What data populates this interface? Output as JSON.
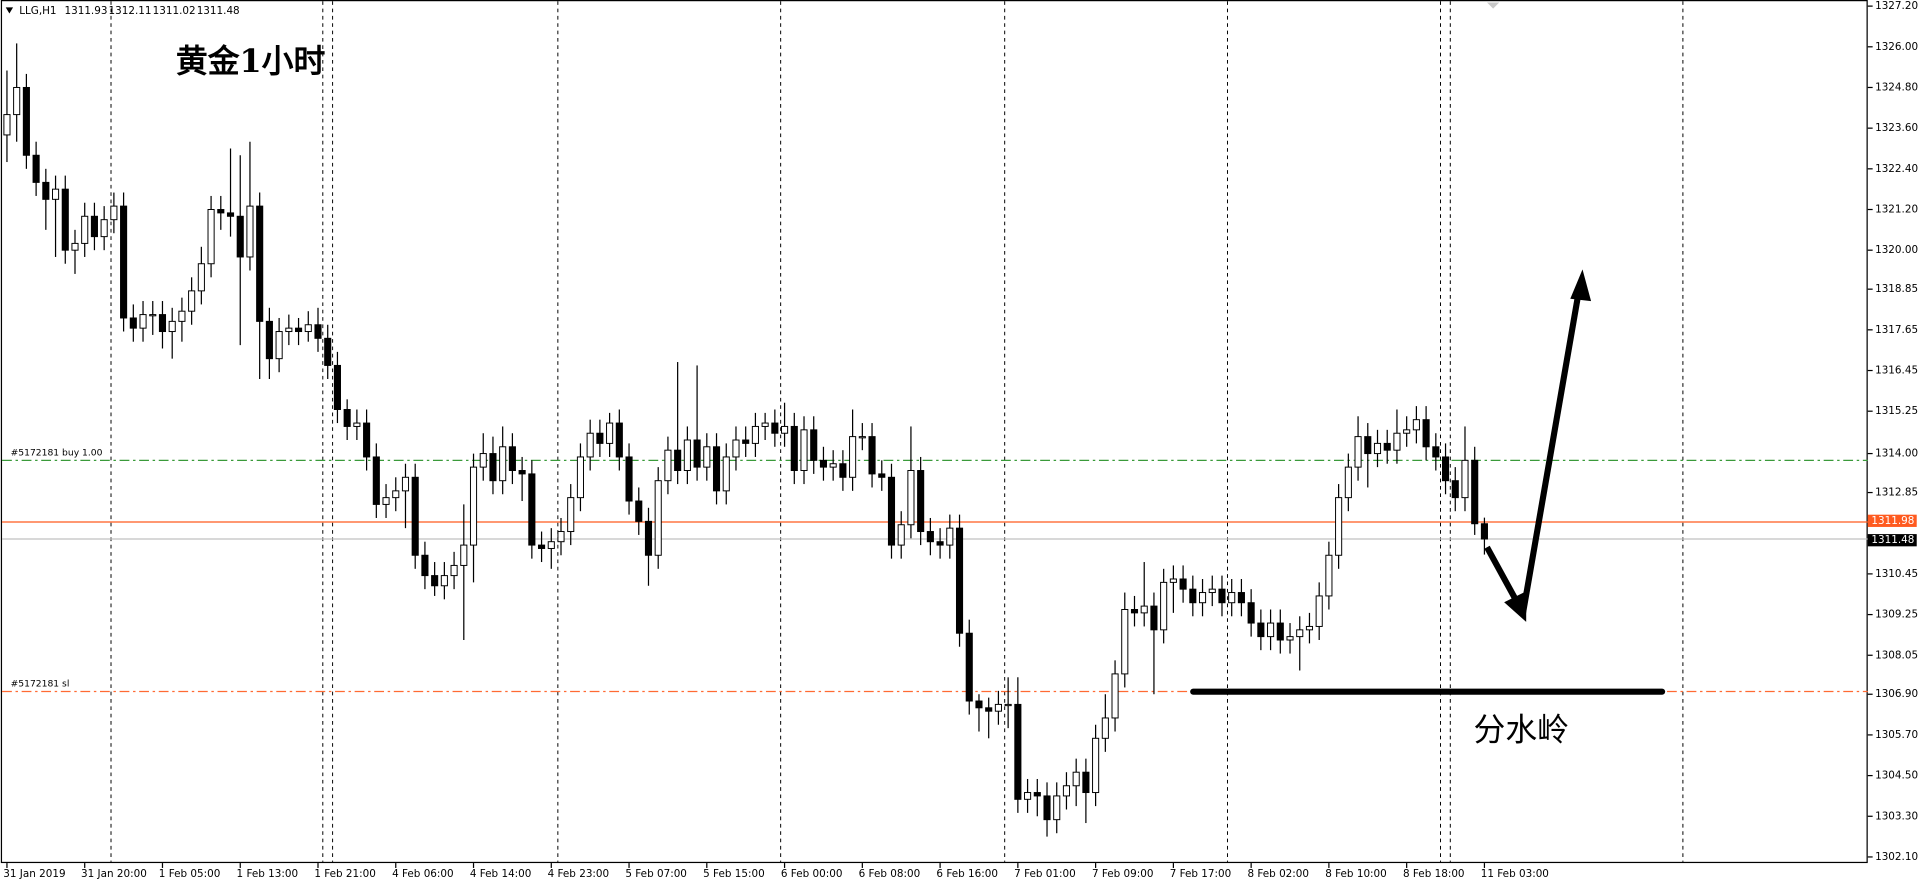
{
  "chart_data": {
    "type": "candlestick",
    "symbol": "LLG,H1",
    "title": "黄金1小时",
    "annotation": "分水岭",
    "ylim": [
      1302.1,
      1327.2
    ],
    "yticks": [
      {
        "value": 1327.2,
        "label": "1327.20"
      },
      {
        "value": 1326.0,
        "label": "1326.00"
      },
      {
        "value": 1324.8,
        "label": "1324.80"
      },
      {
        "value": 1323.6,
        "label": "1323.60"
      },
      {
        "value": 1322.4,
        "label": "1322.40"
      },
      {
        "value": 1321.2,
        "label": "1321.20"
      },
      {
        "value": 1320.0,
        "label": "1320.00"
      },
      {
        "value": 1318.85,
        "label": "1318.85"
      },
      {
        "value": 1317.65,
        "label": "1317.65"
      },
      {
        "value": 1316.45,
        "label": "1316.45"
      },
      {
        "value": 1315.25,
        "label": "1315.25"
      },
      {
        "value": 1314.0,
        "label": "1314.00"
      },
      {
        "value": 1312.85,
        "label": "1312.85"
      },
      {
        "value": 1310.45,
        "label": "1310.45"
      },
      {
        "value": 1309.25,
        "label": "1309.25"
      },
      {
        "value": 1308.05,
        "label": "1308.05"
      },
      {
        "value": 1306.9,
        "label": "1306.90"
      },
      {
        "value": 1305.7,
        "label": "1305.70"
      },
      {
        "value": 1304.5,
        "label": "1304.50"
      },
      {
        "value": 1303.3,
        "label": "1303.30"
      },
      {
        "value": 1302.1,
        "label": "1302.10"
      }
    ],
    "categories": [
      "31 Jan 2019",
      null,
      null,
      null,
      null,
      null,
      null,
      null,
      "31 Jan 20:00",
      null,
      null,
      null,
      null,
      null,
      null,
      null,
      "1 Feb 05:00",
      null,
      null,
      null,
      null,
      null,
      null,
      null,
      "1 Feb 13:00",
      null,
      null,
      null,
      null,
      null,
      null,
      null,
      "1 Feb 21:00",
      null,
      null,
      null,
      null,
      null,
      null,
      null,
      "4 Feb 06:00",
      null,
      null,
      null,
      null,
      null,
      null,
      null,
      "4 Feb 14:00",
      null,
      null,
      null,
      null,
      null,
      null,
      null,
      "4 Feb 23:00",
      null,
      null,
      null,
      null,
      null,
      null,
      null,
      "5 Feb 07:00",
      null,
      null,
      null,
      null,
      null,
      null,
      null,
      "5 Feb 15:00",
      null,
      null,
      null,
      null,
      null,
      null,
      null,
      "6 Feb 00:00",
      null,
      null,
      null,
      null,
      null,
      null,
      null,
      "6 Feb 08:00",
      null,
      null,
      null,
      null,
      null,
      null,
      null,
      "6 Feb 16:00",
      null,
      null,
      null,
      null,
      null,
      null,
      null,
      "7 Feb 01:00",
      null,
      null,
      null,
      null,
      null,
      null,
      null,
      "7 Feb 09:00",
      null,
      null,
      null,
      null,
      null,
      null,
      null,
      "7 Feb 17:00",
      null,
      null,
      null,
      null,
      null,
      null,
      null,
      "8 Feb 02:00",
      null,
      null,
      null,
      null,
      null,
      null,
      null,
      "8 Feb 10:00",
      null,
      null,
      null,
      null,
      null,
      null,
      null,
      "8 Feb 18:00",
      null,
      null,
      null,
      null,
      null,
      null,
      null,
      "11 Feb 03:00"
    ],
    "open": [
      1323.4,
      1324.0,
      1324.8,
      1322.8,
      1322.0,
      1321.5,
      1321.8,
      1320.0,
      1320.2,
      1321.0,
      1320.4,
      1320.9,
      1321.3,
      1318.0,
      1317.7,
      1318.1,
      1318.1,
      1317.6,
      1317.9,
      1318.2,
      1318.8,
      1319.6,
      1321.2,
      1321.1,
      1321.0,
      1319.8,
      1321.3,
      1317.9,
      1316.8,
      1317.6,
      1317.7,
      1317.6,
      1317.8,
      1317.4,
      1316.6,
      1315.3,
      1314.8,
      1314.9,
      1313.9,
      1312.5,
      1312.7,
      1312.9,
      1313.3,
      1311.0,
      1310.4,
      1310.1,
      1310.4,
      1310.7,
      1311.3,
      1313.6,
      1314.0,
      1313.2,
      1314.2,
      1313.5,
      1313.4,
      1311.3,
      1311.2,
      1311.4,
      1311.7,
      1312.7,
      1313.9,
      1314.6,
      1314.3,
      1314.9,
      1313.9,
      1312.6,
      1312.0,
      1311.0,
      1313.2,
      1314.1,
      1313.5,
      1314.4,
      1313.6,
      1314.2,
      1312.9,
      1313.9,
      1314.4,
      1314.3,
      1314.8,
      1314.9,
      1314.6,
      1314.8,
      1313.5,
      1314.7,
      1313.8,
      1313.6,
      1313.7,
      1313.3,
      1314.5,
      1314.5,
      1313.4,
      1313.3,
      1311.3,
      1311.9,
      1313.5,
      1311.7,
      1311.4,
      1311.3,
      1311.8,
      1308.7,
      1306.7,
      1306.5,
      1306.4,
      1306.6,
      1306.6,
      1303.8,
      1304.0,
      1303.9,
      1303.2,
      1303.9,
      1304.2,
      1304.6,
      1304.0,
      1305.6,
      1306.2,
      1307.5,
      1309.4,
      1309.3,
      1309.5,
      1308.8,
      1310.2,
      1310.3,
      1310.0,
      1309.6,
      1309.9,
      1310.0,
      1309.6,
      1309.9,
      1309.6,
      1309.0,
      1308.6,
      1309.0,
      1308.5,
      1308.6,
      1308.8,
      1308.9,
      1309.8,
      1311.0,
      1312.7,
      1313.6,
      1314.5,
      1314.0,
      1314.3,
      1314.1,
      1314.6,
      1314.7,
      1315.0,
      1314.2,
      1313.9,
      1313.2,
      1312.7,
      1313.8,
      1311.93
    ],
    "high": [
      1325.3,
      1326.1,
      1325.2,
      1323.2,
      1322.4,
      1322.2,
      1322.2,
      1320.6,
      1321.4,
      1321.4,
      1321.3,
      1321.7,
      1321.7,
      1318.4,
      1318.5,
      1318.5,
      1318.5,
      1318.3,
      1318.6,
      1319.2,
      1320.1,
      1321.6,
      1321.6,
      1323.0,
      1322.8,
      1323.2,
      1321.7,
      1318.3,
      1318.0,
      1318.1,
      1318.0,
      1318.2,
      1318.3,
      1317.8,
      1317.0,
      1315.6,
      1315.3,
      1315.3,
      1314.3,
      1313.1,
      1313.3,
      1313.7,
      1313.7,
      1311.4,
      1310.8,
      1310.8,
      1311.1,
      1312.5,
      1314.0,
      1314.6,
      1314.5,
      1314.8,
      1314.6,
      1313.9,
      1313.8,
      1311.7,
      1311.8,
      1312.1,
      1313.1,
      1314.3,
      1315.0,
      1315.0,
      1315.2,
      1315.3,
      1314.3,
      1313.0,
      1312.4,
      1313.6,
      1314.5,
      1316.7,
      1314.8,
      1316.6,
      1314.6,
      1314.6,
      1314.3,
      1314.8,
      1314.8,
      1315.2,
      1315.2,
      1315.3,
      1315.5,
      1315.2,
      1315.1,
      1315.1,
      1314.2,
      1314.1,
      1314.1,
      1315.3,
      1314.9,
      1314.9,
      1313.8,
      1313.7,
      1312.3,
      1314.8,
      1313.9,
      1312.1,
      1311.8,
      1312.2,
      1312.2,
      1309.1,
      1306.9,
      1306.8,
      1307.0,
      1307.4,
      1307.4,
      1304.4,
      1304.4,
      1304.3,
      1304.3,
      1304.6,
      1305.0,
      1305.0,
      1306.0,
      1306.9,
      1307.9,
      1309.9,
      1309.8,
      1310.8,
      1309.9,
      1310.6,
      1310.7,
      1310.7,
      1310.4,
      1310.3,
      1310.4,
      1310.4,
      1310.3,
      1310.3,
      1310.0,
      1309.4,
      1309.4,
      1309.4,
      1309.0,
      1309.2,
      1309.3,
      1310.2,
      1311.4,
      1313.1,
      1314.0,
      1315.1,
      1314.9,
      1314.7,
      1314.7,
      1315.3,
      1315.1,
      1315.4,
      1315.4,
      1314.6,
      1314.3,
      1313.6,
      1314.8,
      1314.2,
      1312.11
    ],
    "low": [
      1322.6,
      1323.2,
      1322.4,
      1321.6,
      1320.6,
      1319.8,
      1319.6,
      1319.3,
      1319.8,
      1320.0,
      1320.0,
      1320.5,
      1317.6,
      1317.3,
      1317.3,
      1317.5,
      1317.1,
      1316.8,
      1317.3,
      1317.8,
      1318.4,
      1319.2,
      1320.6,
      1320.4,
      1317.2,
      1319.4,
      1316.2,
      1316.2,
      1316.4,
      1317.2,
      1317.2,
      1317.3,
      1317.0,
      1316.2,
      1314.9,
      1314.4,
      1314.4,
      1313.5,
      1312.1,
      1312.1,
      1312.3,
      1311.8,
      1310.6,
      1310.0,
      1309.8,
      1309.7,
      1310.0,
      1308.5,
      1310.2,
      1313.2,
      1312.8,
      1312.8,
      1313.1,
      1312.6,
      1310.9,
      1310.8,
      1310.6,
      1311.0,
      1311.3,
      1312.3,
      1313.5,
      1313.9,
      1313.9,
      1313.5,
      1312.2,
      1311.6,
      1310.1,
      1310.6,
      1312.8,
      1313.1,
      1313.1,
      1313.2,
      1313.2,
      1312.5,
      1312.5,
      1313.5,
      1313.9,
      1313.9,
      1314.4,
      1314.2,
      1314.2,
      1313.1,
      1313.1,
      1313.4,
      1313.2,
      1313.2,
      1312.9,
      1312.9,
      1314.1,
      1313.0,
      1312.9,
      1310.9,
      1310.9,
      1311.5,
      1311.3,
      1311.0,
      1310.9,
      1310.9,
      1308.3,
      1306.3,
      1305.8,
      1305.6,
      1306.0,
      1305.9,
      1303.4,
      1303.4,
      1303.3,
      1302.7,
      1302.8,
      1303.5,
      1303.6,
      1303.1,
      1303.6,
      1305.2,
      1305.8,
      1307.1,
      1308.9,
      1308.9,
      1306.9,
      1308.4,
      1309.3,
      1309.6,
      1309.2,
      1309.2,
      1309.5,
      1309.2,
      1309.2,
      1309.2,
      1308.6,
      1308.2,
      1308.2,
      1308.1,
      1308.1,
      1307.6,
      1308.4,
      1308.5,
      1309.4,
      1310.6,
      1312.3,
      1313.2,
      1313.0,
      1313.6,
      1313.7,
      1313.7,
      1314.2,
      1314.3,
      1313.8,
      1313.5,
      1312.8,
      1312.3,
      1312.3,
      1311.6,
      1311.02
    ],
    "close": [
      1324.0,
      1324.8,
      1322.8,
      1322.0,
      1321.5,
      1321.8,
      1320.0,
      1320.2,
      1321.0,
      1320.4,
      1320.9,
      1321.3,
      1318.0,
      1317.7,
      1318.1,
      1318.1,
      1317.6,
      1317.9,
      1318.2,
      1318.8,
      1319.6,
      1321.2,
      1321.1,
      1321.0,
      1319.8,
      1321.3,
      1317.9,
      1316.8,
      1317.6,
      1317.7,
      1317.6,
      1317.8,
      1317.4,
      1316.6,
      1315.3,
      1314.8,
      1314.9,
      1313.9,
      1312.5,
      1312.7,
      1312.9,
      1313.3,
      1311.0,
      1310.4,
      1310.1,
      1310.4,
      1310.7,
      1311.3,
      1313.6,
      1314.0,
      1313.2,
      1314.2,
      1313.5,
      1313.4,
      1311.3,
      1311.2,
      1311.4,
      1311.7,
      1312.7,
      1313.9,
      1314.6,
      1314.3,
      1314.9,
      1313.9,
      1312.6,
      1312.0,
      1311.0,
      1313.2,
      1314.1,
      1313.5,
      1314.4,
      1313.6,
      1314.2,
      1312.9,
      1313.9,
      1314.4,
      1314.3,
      1314.8,
      1314.9,
      1314.6,
      1314.8,
      1313.5,
      1314.7,
      1313.8,
      1313.6,
      1313.7,
      1313.3,
      1314.5,
      1314.5,
      1313.4,
      1313.3,
      1311.3,
      1311.9,
      1313.5,
      1311.7,
      1311.4,
      1311.3,
      1311.8,
      1308.7,
      1306.7,
      1306.5,
      1306.4,
      1306.6,
      1306.6,
      1303.8,
      1304.0,
      1303.9,
      1303.2,
      1303.9,
      1304.2,
      1304.6,
      1304.0,
      1305.6,
      1306.2,
      1307.5,
      1309.4,
      1309.3,
      1309.5,
      1308.8,
      1310.2,
      1310.3,
      1310.0,
      1309.6,
      1309.9,
      1310.0,
      1309.6,
      1309.9,
      1309.6,
      1309.0,
      1308.6,
      1309.0,
      1308.5,
      1308.6,
      1308.8,
      1308.9,
      1309.8,
      1311.0,
      1312.7,
      1313.6,
      1314.5,
      1314.0,
      1314.3,
      1314.1,
      1314.6,
      1314.7,
      1315.0,
      1314.2,
      1313.9,
      1313.2,
      1312.7,
      1313.8,
      1311.93,
      1311.48
    ],
    "bull_color": "#ffffff",
    "bear_color": "#000000",
    "levels": [
      {
        "label": "#5172181 buy 1.00",
        "value": 1313.8,
        "color": "#3a9a3a"
      },
      {
        "label": "#5172181 sl",
        "value": 1306.98,
        "color": "#ff6a33"
      }
    ],
    "price_lines": [
      {
        "value": 1311.98,
        "color": "#ff5a1f"
      },
      {
        "value": 1311.48,
        "color": "#c0c0c0"
      }
    ]
  }
}
